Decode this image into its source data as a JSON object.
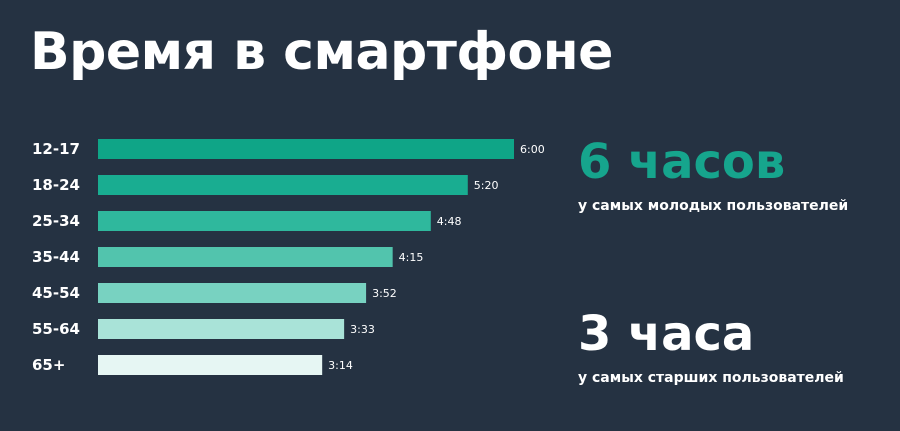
{
  "title": "Время в смартфоне",
  "colors": {
    "background": "#253242",
    "accent": "#16a58d",
    "text": "#ffffff",
    "bars": [
      "#0fa587",
      "#19ad91",
      "#2fb89d",
      "#52c4ad",
      "#78d2c1",
      "#a9e3d8",
      "#e6f6f3"
    ]
  },
  "chart_data": {
    "type": "bar",
    "orientation": "horizontal",
    "categories": [
      "12-17",
      "18-24",
      "25-34",
      "35-44",
      "45-54",
      "55-64",
      "65+"
    ],
    "values_minutes": [
      360,
      320,
      288,
      255,
      232,
      213,
      194
    ],
    "value_labels": [
      "6:00",
      "5:20",
      "4:48",
      "4:15",
      "3:52",
      "3:33",
      "3:14"
    ],
    "title": "Время в смартфоне",
    "xlabel": "",
    "ylabel": "",
    "xlim": [
      0,
      360
    ],
    "grid": false,
    "legend": "none"
  },
  "stats": [
    {
      "big": "6 часов",
      "sub": "у самых молодых пользователей",
      "color": "#16a58d"
    },
    {
      "big": "3 часа",
      "sub": "у самых старших пользователей",
      "color": "#ffffff"
    }
  ]
}
